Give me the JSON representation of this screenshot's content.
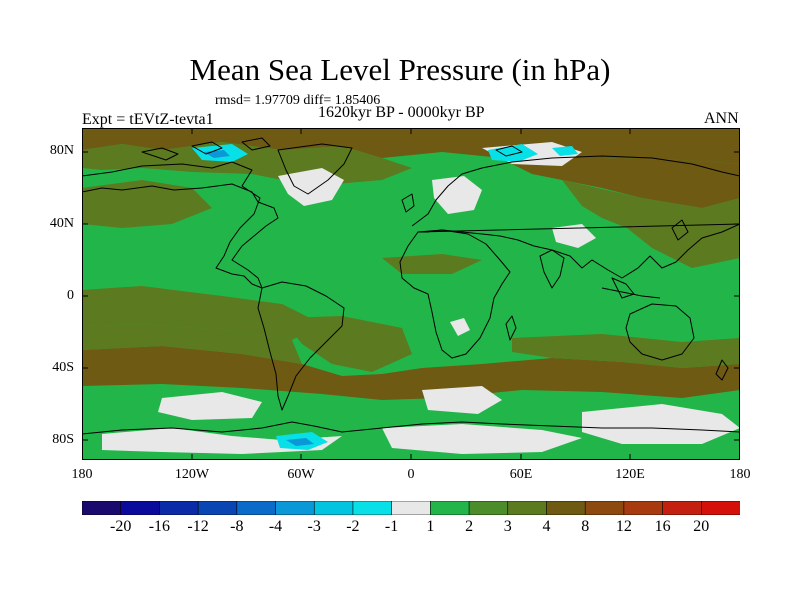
{
  "title": "Mean Sea Level Pressure (in hPa)",
  "stats": "rmsd= 1.97709 diff= 1.85406",
  "experiment": "Expt = tEVtZ-tevta1",
  "period": "1620kyr BP - 0000kyr BP",
  "season": "ANN",
  "lat_labels": [
    "80N",
    "40N",
    "0",
    "40S",
    "80S"
  ],
  "lon_labels": [
    "180",
    "120W",
    "60W",
    "0",
    "60E",
    "120E",
    "180"
  ],
  "colorbar": {
    "labels": [
      "-20",
      "-16",
      "-12",
      "-8",
      "-4",
      "-3",
      "-2",
      "-1",
      "1",
      "2",
      "3",
      "4",
      "8",
      "12",
      "16",
      "20"
    ],
    "colors": [
      "#1a0a6e",
      "#0a0a9c",
      "#0a2aa8",
      "#0a45b4",
      "#0a6cc8",
      "#0a98d8",
      "#00c4e0",
      "#08e0e8",
      "#e8e8e8",
      "#22b64a",
      "#4c8c2a",
      "#5c7a20",
      "#6e5a12",
      "#8c4a10",
      "#a83a10",
      "#c42010",
      "#d41008"
    ]
  },
  "palette": {
    "land_outline": "#000000",
    "green": "#22b64a",
    "olive": "#5c7a20",
    "brown": "#6e5a12",
    "white": "#e8e8e8",
    "cyan": "#08e0e8",
    "blue": "#0a98d8"
  }
}
